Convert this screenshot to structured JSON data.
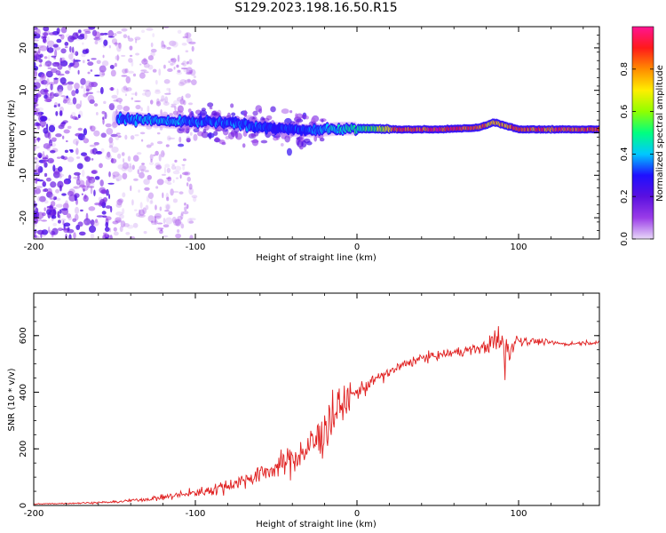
{
  "page": {
    "title": "S129.2023.198.16.50.R15"
  },
  "chart_data": [
    {
      "type": "heatmap",
      "title": "S129.2023.198.16.50.R15",
      "xlabel": "Height of straight line (km)",
      "ylabel": "Frequency (Hz)",
      "xlim": [
        -200,
        150
      ],
      "ylim": [
        -25,
        25
      ],
      "x_ticks": [
        -200,
        -100,
        0,
        100
      ],
      "y_ticks": [
        -20,
        -10,
        0,
        10,
        20
      ],
      "colorbar": {
        "label": "Normalized spectral amplitude",
        "range": [
          0,
          1
        ],
        "ticks": [
          "0.0",
          "0.2",
          "0.4",
          "0.6",
          "0.8"
        ],
        "colors": [
          "#e8d8f8",
          "#9a3ce8",
          "#5a10e0",
          "#1f10ff",
          "#00c8ff",
          "#00ff80",
          "#90ff00",
          "#ffee00",
          "#ff8c00",
          "#ff1a1a",
          "#ff1493"
        ]
      },
      "ridge_profile": [
        {
          "x": -145,
          "freq": 3.5,
          "amp": 0.35
        },
        {
          "x": -130,
          "freq": 3.0,
          "amp": 0.4
        },
        {
          "x": -110,
          "freq": 2.5,
          "amp": 0.38
        },
        {
          "x": -90,
          "freq": 2.5,
          "amp": 0.35
        },
        {
          "x": -70,
          "freq": 2.0,
          "amp": 0.35
        },
        {
          "x": -50,
          "freq": 1.0,
          "amp": 0.3
        },
        {
          "x": -30,
          "freq": 0.5,
          "amp": 0.35
        },
        {
          "x": -10,
          "freq": 1.0,
          "amp": 0.45
        },
        {
          "x": 10,
          "freq": 1.0,
          "amp": 0.55
        },
        {
          "x": 25,
          "freq": 0.8,
          "amp": 0.85
        },
        {
          "x": 50,
          "freq": 0.8,
          "amp": 0.9
        },
        {
          "x": 75,
          "freq": 1.2,
          "amp": 0.85
        },
        {
          "x": 85,
          "freq": 2.5,
          "amp": 0.75
        },
        {
          "x": 100,
          "freq": 0.8,
          "amp": 0.85
        },
        {
          "x": 150,
          "freq": 0.8,
          "amp": 0.9
        }
      ]
    },
    {
      "type": "line",
      "xlabel": "Height of straight line (km)",
      "ylabel": "SNR (10 * v/v)",
      "xlim": [
        -200,
        150
      ],
      "ylim": [
        0,
        750
      ],
      "x_ticks": [
        -200,
        -100,
        0,
        100
      ],
      "y_ticks": [
        0,
        200,
        400,
        600
      ],
      "series": [
        {
          "color": "#e02020",
          "x": [
            -200,
            -175,
            -150,
            -125,
            -100,
            -90,
            -80,
            -70,
            -60,
            -50,
            -40,
            -30,
            -25,
            -20,
            -15,
            -10,
            -5,
            0,
            10,
            20,
            30,
            40,
            50,
            60,
            70,
            80,
            85,
            90,
            93,
            96,
            100,
            110,
            120,
            130,
            140,
            150
          ],
          "y": [
            5,
            8,
            12,
            25,
            45,
            55,
            70,
            90,
            110,
            135,
            165,
            200,
            230,
            270,
            320,
            350,
            380,
            400,
            440,
            470,
            500,
            520,
            530,
            540,
            550,
            560,
            580,
            570,
            540,
            570,
            585,
            580,
            575,
            570,
            575,
            575
          ],
          "noise": [
            2,
            3,
            5,
            10,
            20,
            25,
            30,
            35,
            40,
            45,
            60,
            80,
            100,
            110,
            120,
            80,
            60,
            40,
            30,
            25,
            20,
            20,
            20,
            20,
            20,
            25,
            60,
            100,
            160,
            60,
            30,
            15,
            10,
            8,
            8,
            8
          ]
        }
      ]
    }
  ]
}
